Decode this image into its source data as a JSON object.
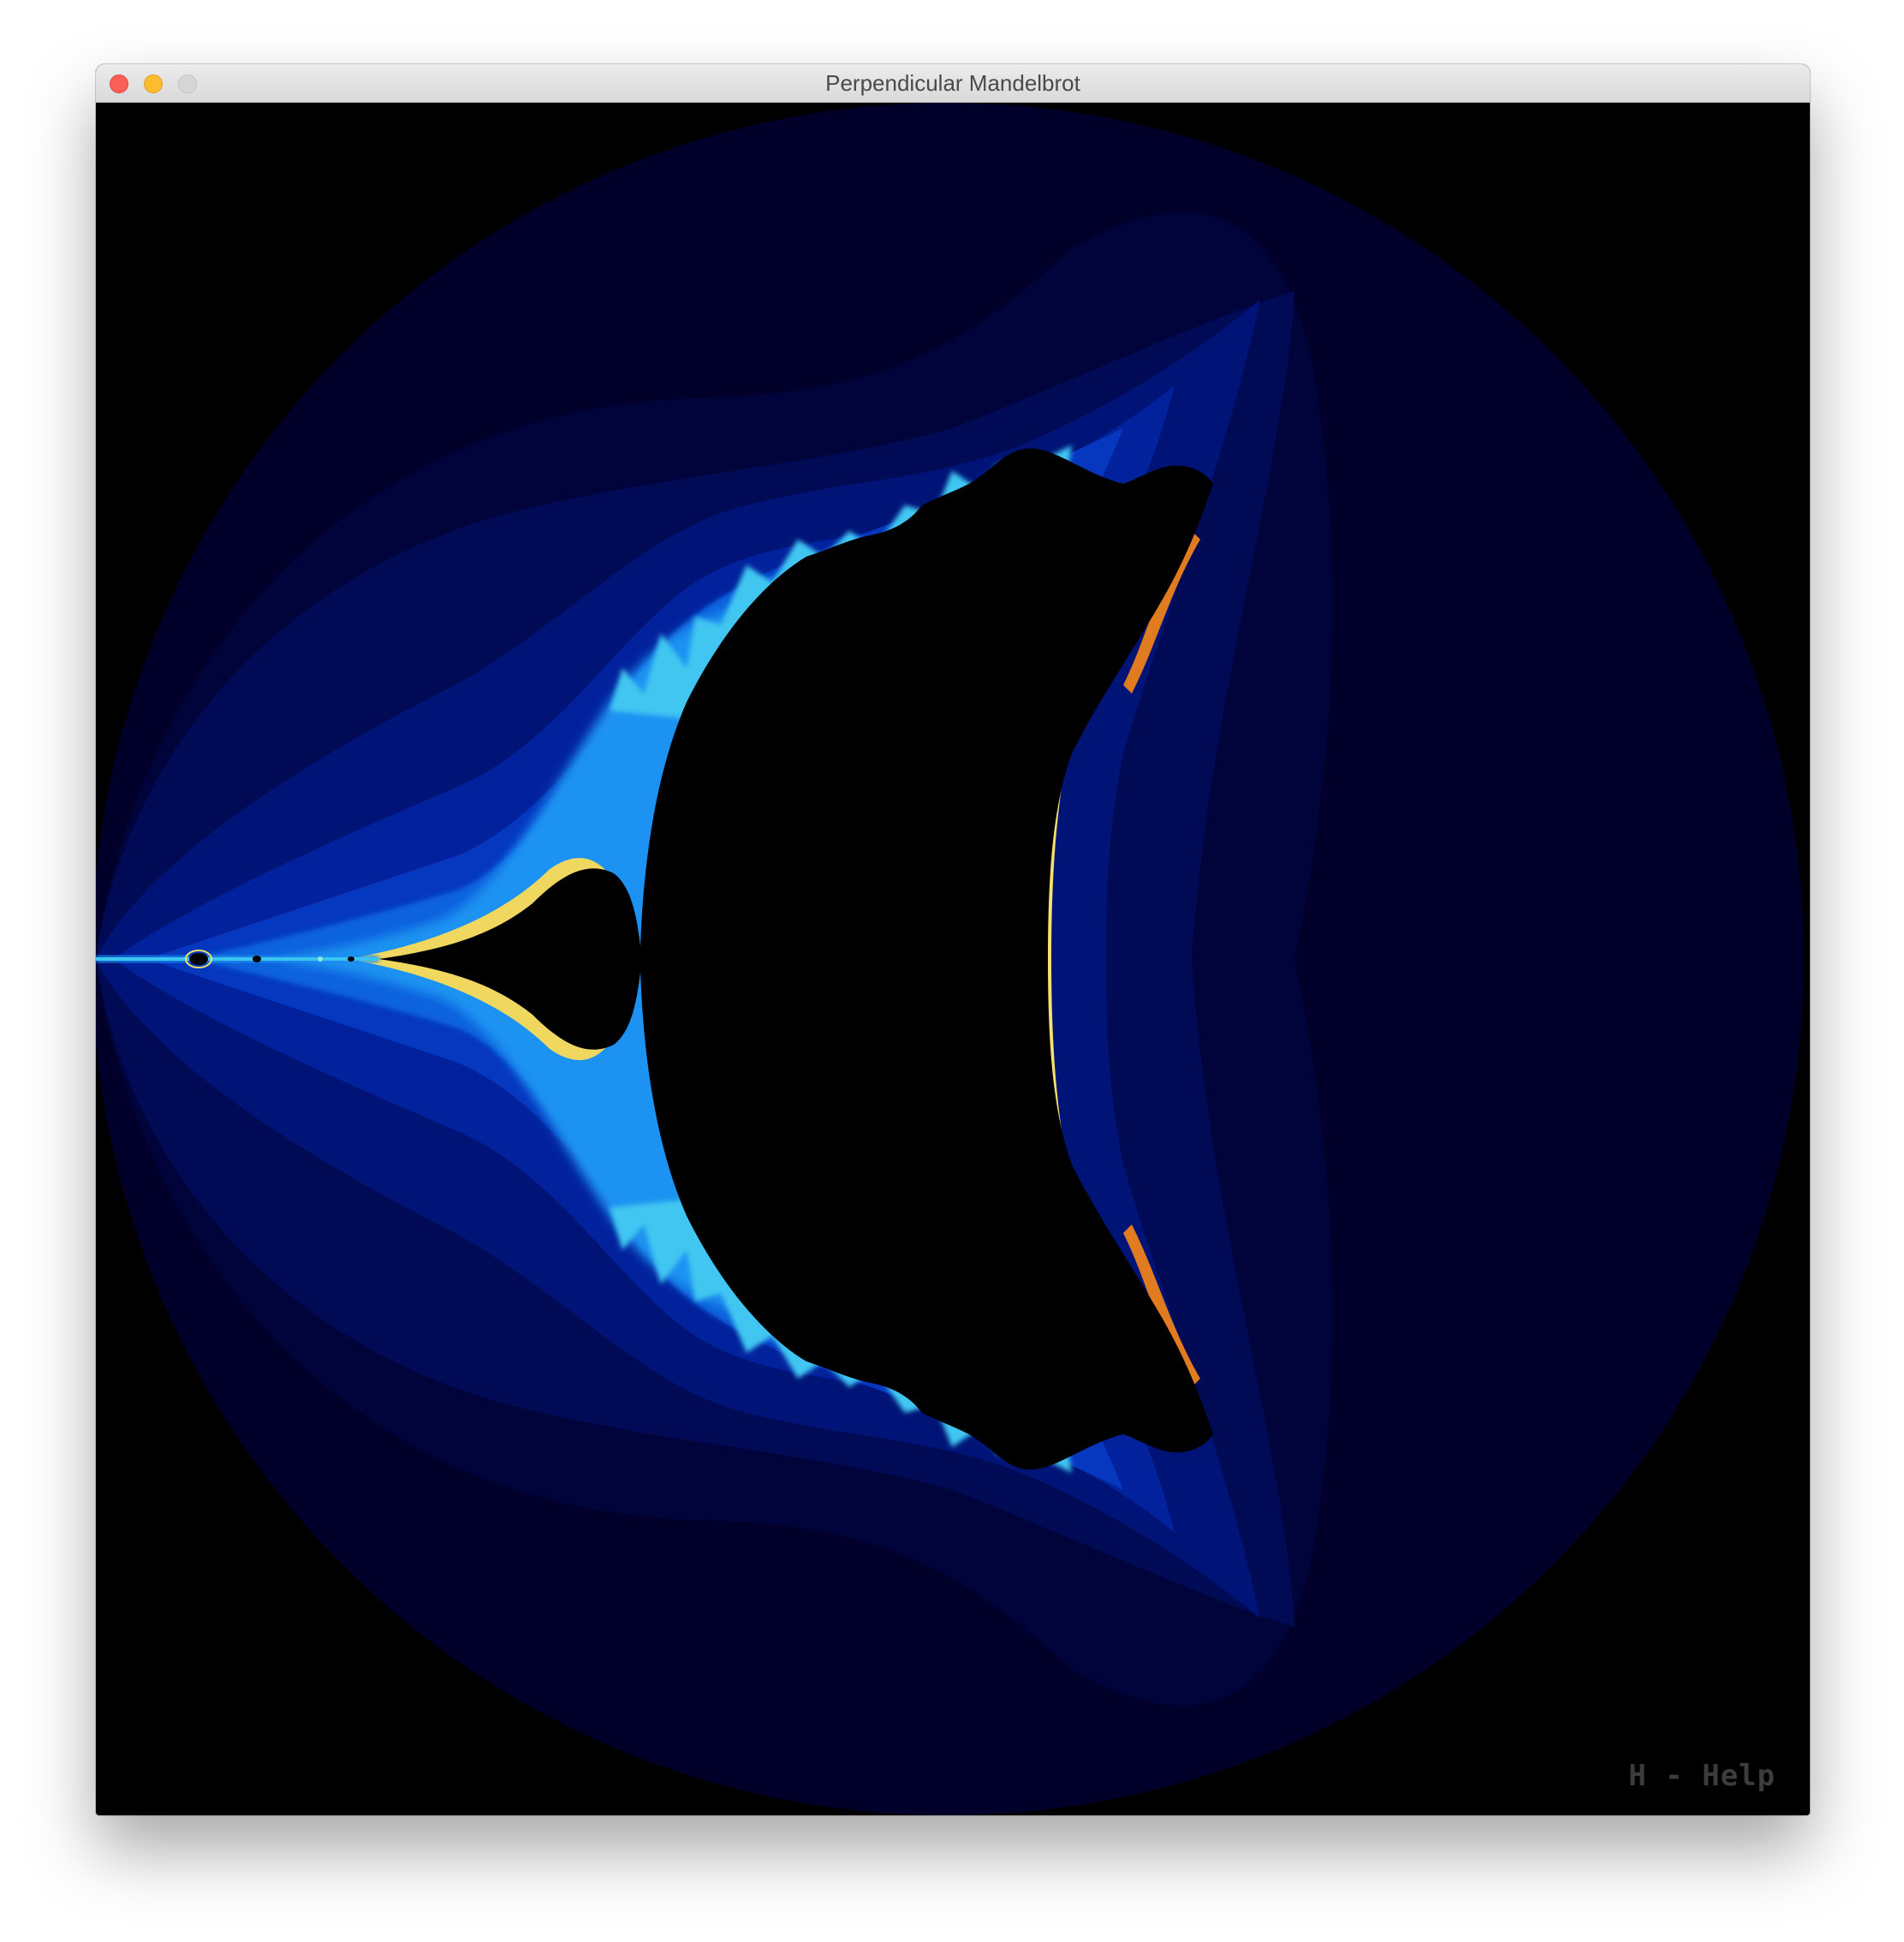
{
  "window": {
    "title": "Perpendicular Mandelbrot"
  },
  "canvas": {
    "fractal": "perpendicular-mandelbrot",
    "palette": [
      "#000000",
      "#00002a",
      "#00063d",
      "#000d5c",
      "#021a85",
      "#0433ad",
      "#0b5ad6",
      "#1a8bf0",
      "#39c4f2",
      "#8fe8d8",
      "#f3e06a",
      "#e07b1f",
      "#000000"
    ],
    "help_hint": "H - Help"
  }
}
